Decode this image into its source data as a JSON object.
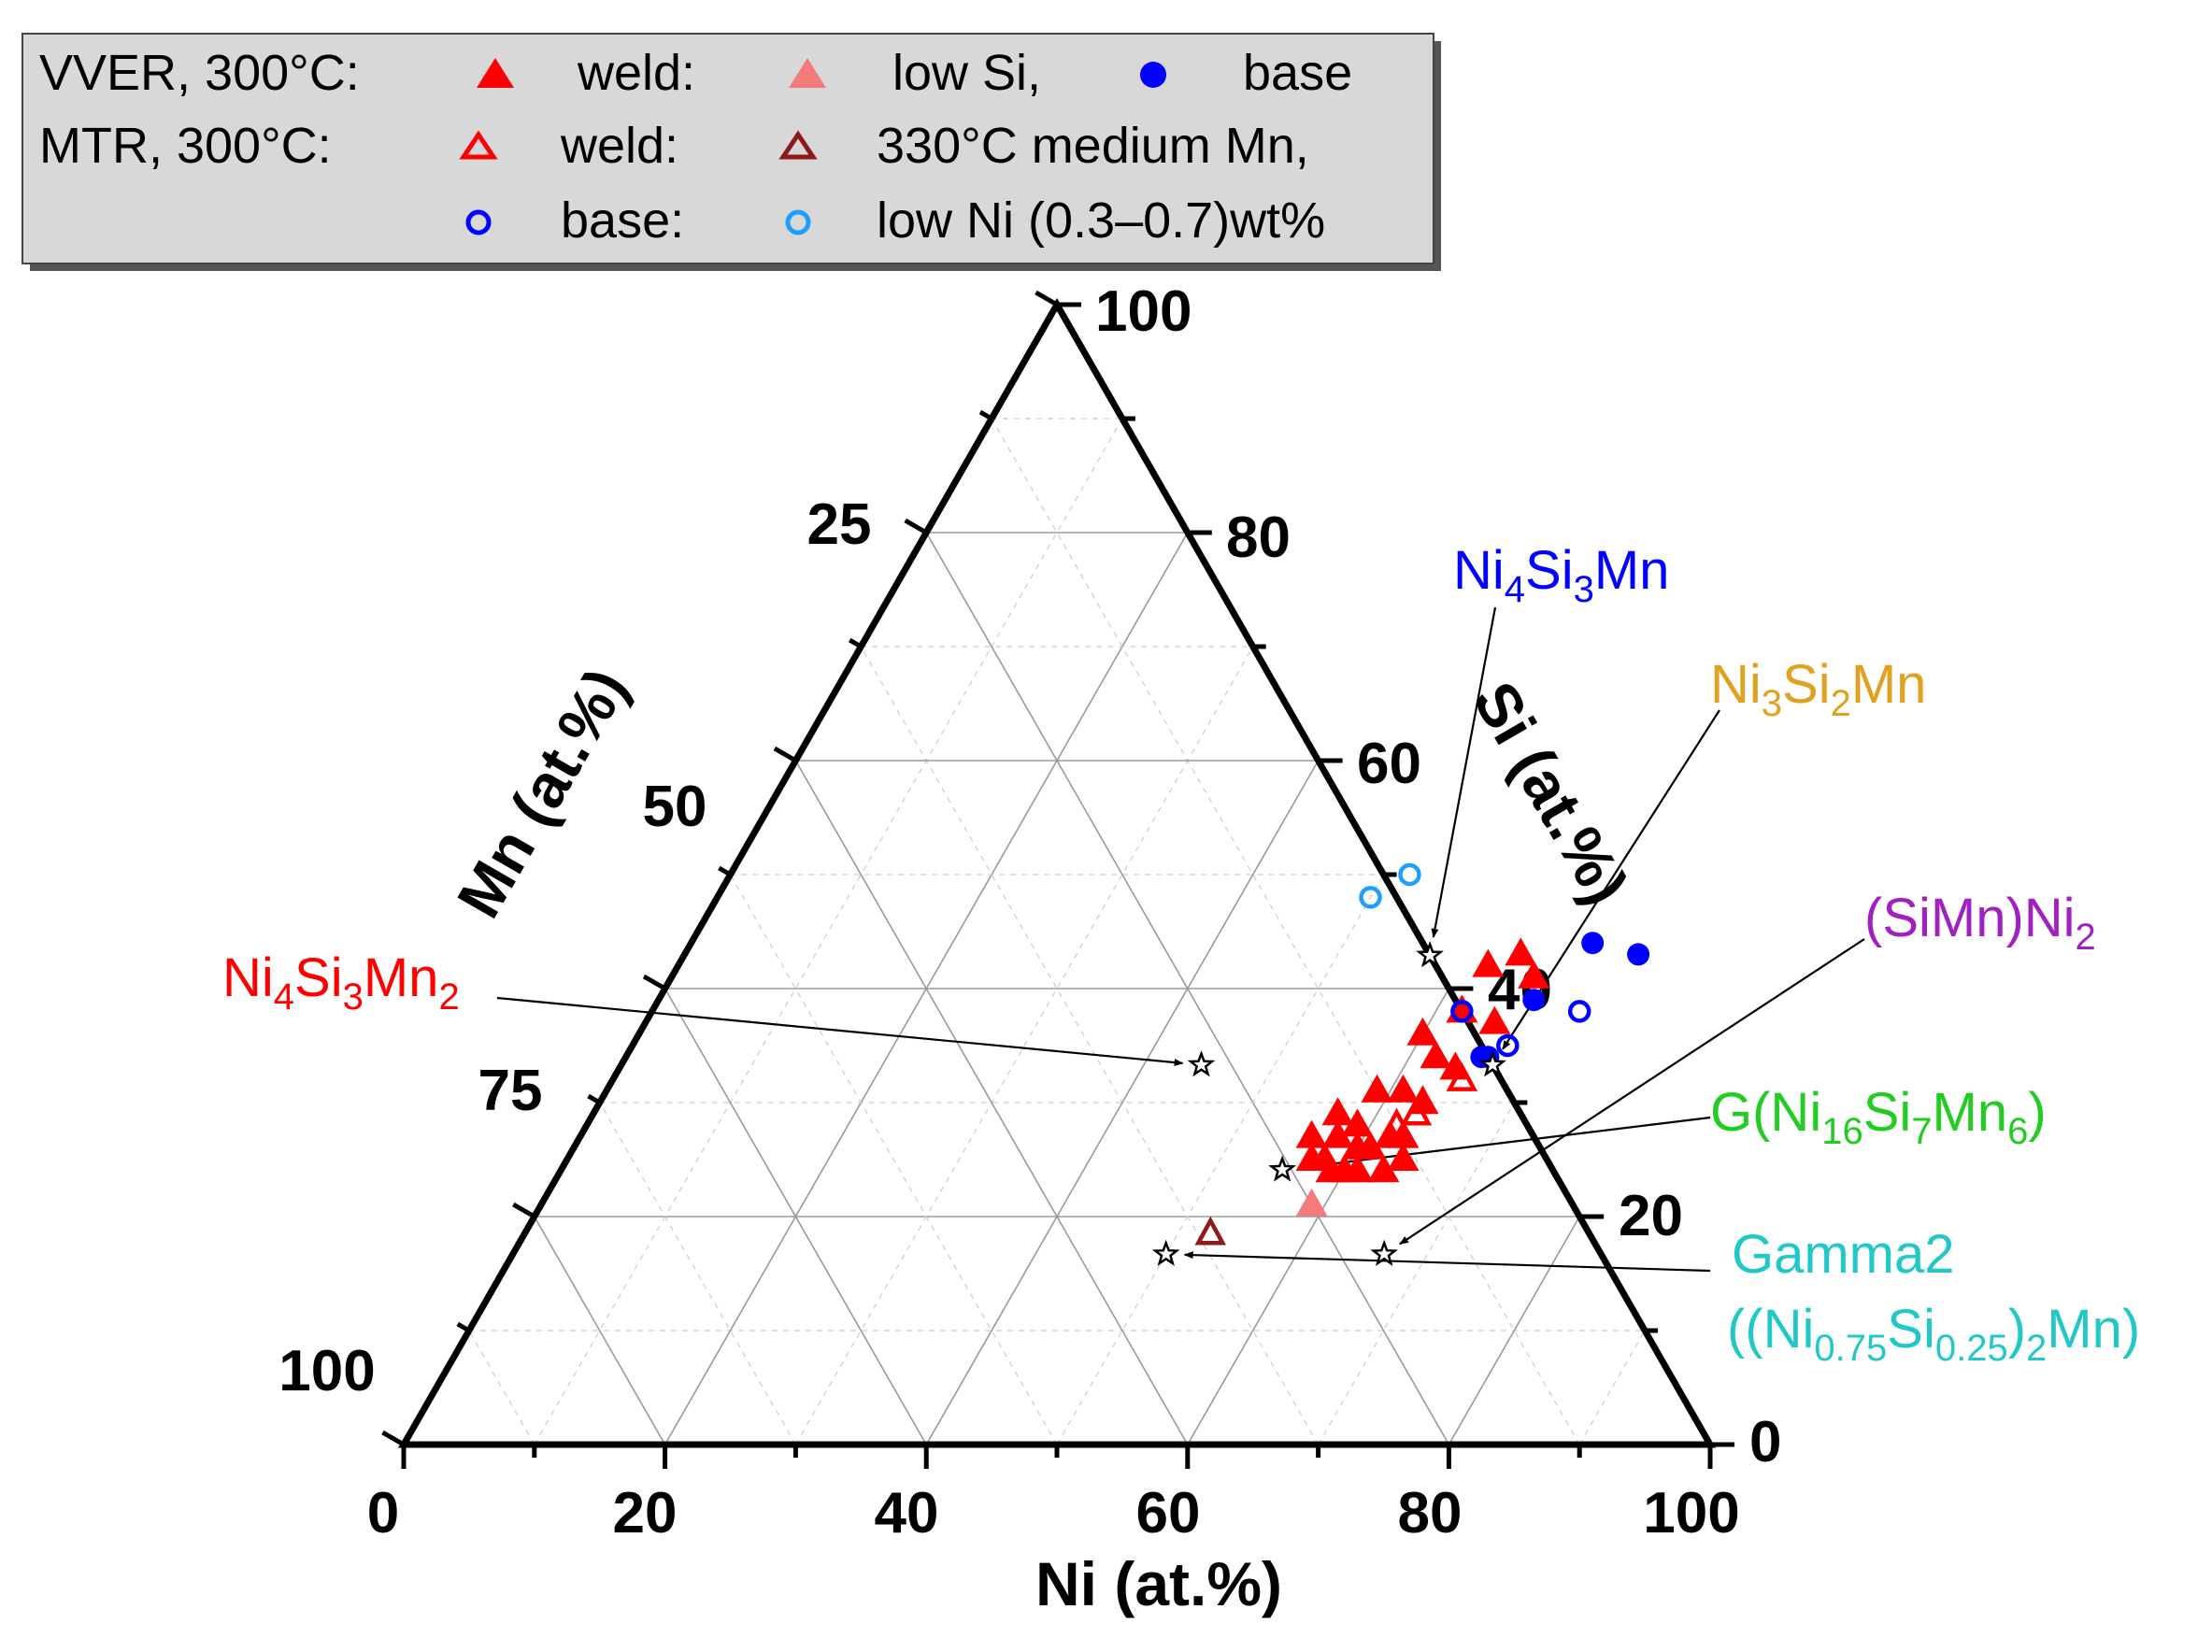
{
  "chart_data": {
    "type": "ternary-scatter",
    "axes": {
      "bottom": {
        "label": "Ni (at.%)",
        "ticks": [
          "0",
          "20",
          "40",
          "60",
          "80",
          "100"
        ]
      },
      "right": {
        "label": "Si (at.%)",
        "ticks": [
          "0",
          "20",
          "40",
          "60",
          "80",
          "100"
        ]
      },
      "left": {
        "label": "Mn (at.%)",
        "ticks": [
          "25",
          "50",
          "75",
          "100"
        ]
      }
    },
    "legend": {
      "rows": [
        [
          "VVER, 300°C:",
          "weld:",
          "low Si,",
          "base"
        ],
        [
          "MTR, 300°C:",
          "weld:",
          "330°C medium Mn,"
        ],
        [
          "base:",
          "low Ni (0.3–0.7)wt%"
        ]
      ]
    },
    "series": [
      {
        "name": "VVER weld",
        "marker": "triangle-filled",
        "color": "#ff0000",
        "points": [
          [
            62,
            42
          ],
          [
            64,
            43
          ],
          [
            66,
            41
          ],
          [
            62,
            38
          ],
          [
            65,
            37
          ],
          [
            60,
            36
          ],
          [
            62,
            34
          ],
          [
            64,
            33
          ],
          [
            59,
            31
          ],
          [
            61,
            31
          ],
          [
            63,
            30
          ],
          [
            58,
            27
          ],
          [
            60,
            26
          ],
          [
            57,
            29
          ],
          [
            59,
            28
          ],
          [
            63,
            27
          ],
          [
            61,
            26
          ],
          [
            62,
            27
          ],
          [
            57,
            25
          ],
          [
            58,
            25
          ],
          [
            59,
            24
          ],
          [
            60,
            24
          ],
          [
            61,
            24
          ],
          [
            63,
            24
          ],
          [
            64,
            25
          ],
          [
            56,
            27
          ]
        ]
      },
      {
        "name": "VVER low Si",
        "marker": "triangle-filled",
        "color": "#f47b7b",
        "points": [
          [
            59,
            21
          ]
        ]
      },
      {
        "name": "VVER base",
        "marker": "circle-filled",
        "color": "#0000ff",
        "points": [
          [
            69,
            44
          ],
          [
            73,
            43
          ],
          [
            67,
            39
          ],
          [
            66,
            34
          ],
          [
            65.5,
            34
          ]
        ]
      },
      {
        "name": "MTR weld",
        "marker": "triangle-open",
        "color": "#ff0000",
        "points": [
          [
            65,
            32
          ],
          [
            63,
            30
          ],
          [
            63,
            29
          ],
          [
            62,
            28
          ]
        ]
      },
      {
        "name": "MTR 330°C medium Mn",
        "marker": "triangle-open",
        "color": "#8b1a1a",
        "points": [
          [
            52.5,
            18.5
          ]
        ]
      },
      {
        "name": "MTR base",
        "marker": "circle-open",
        "color": "#0000ff",
        "points": [
          [
            62,
            38
          ],
          [
            67,
            35
          ],
          [
            71,
            38
          ]
        ]
      },
      {
        "name": "MTR low Ni (0.3-0.7)wt%",
        "marker": "circle-open",
        "color": "#1e9fff",
        "points": [
          [
            50,
            48
          ],
          [
            52,
            50
          ]
        ]
      }
    ],
    "phases": [
      {
        "name": "Ni4Si3Mn",
        "color": "#0000ff",
        "point": [
          57.1,
          42.9
        ]
      },
      {
        "name": "Ni3Si2Mn",
        "color": "#e0a020",
        "point": [
          66.7,
          33.3
        ]
      },
      {
        "name": "(SiMn)Ni2",
        "color": "#a020c0",
        "point": [
          66.7,
          16.7
        ]
      },
      {
        "name": "G(Ni16Si7Mn6)",
        "color": "#22cc22",
        "point": [
          55.2,
          24.1
        ]
      },
      {
        "name": "Gamma2 ((Ni0.75Si0.25)2Mn)",
        "color": "#22c8c8",
        "point": [
          50,
          16.7
        ]
      },
      {
        "name": "Ni4Si3Mn2",
        "color": "#ff0000",
        "point": [
          44.4,
          33.3
        ]
      }
    ]
  }
}
